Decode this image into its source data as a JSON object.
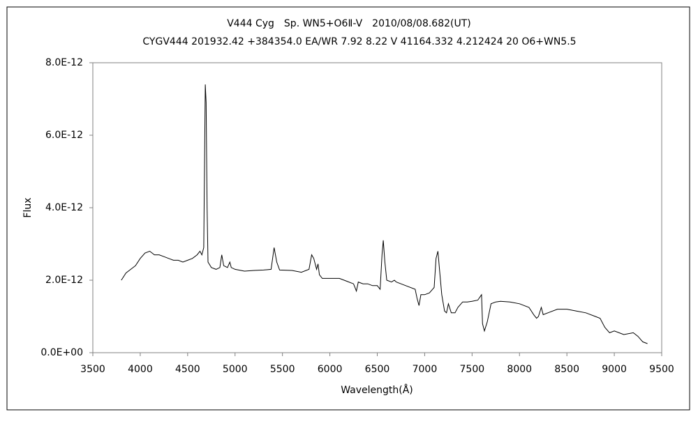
{
  "chart_data": {
    "type": "line",
    "title": "V444 Cyg　Sp. WN5+O6Ⅱ-V　2010/08/08.682(UT)",
    "subtitle": "CYGV444 201932.42 +384354.0 EA/WR 7.92 8.22  V 41164.332 4.212424 20 O6+WN5.5",
    "xlabel": "Wavelength(Å)",
    "ylabel": "Flux",
    "xlim": [
      3500,
      9500
    ],
    "xticks": [
      3500,
      4000,
      4500,
      5000,
      5500,
      6000,
      6500,
      7000,
      7500,
      8000,
      8500,
      9000,
      9500
    ],
    "ylim": [
      0,
      8e-12
    ],
    "yticks": [
      {
        "value": 0,
        "label": "0.0E+00"
      },
      {
        "value": 2e-12,
        "label": "2.0E-12"
      },
      {
        "value": 4e-12,
        "label": "4.0E-12"
      },
      {
        "value": 6e-12,
        "label": "6.0E-12"
      },
      {
        "value": 8e-12,
        "label": "8.0E-12"
      }
    ],
    "grid": false,
    "series": [
      {
        "color": "#000000",
        "x": [
          3800,
          3850,
          3900,
          3950,
          4000,
          4050,
          4100,
          4150,
          4200,
          4250,
          4300,
          4350,
          4400,
          4450,
          4500,
          4550,
          4600,
          4630,
          4650,
          4670,
          4686,
          4695,
          4705,
          4715,
          4750,
          4800,
          4840,
          4860,
          4880,
          4920,
          4945,
          4960,
          5000,
          5100,
          5200,
          5300,
          5380,
          5412,
          5440,
          5470,
          5600,
          5700,
          5780,
          5808,
          5830,
          5860,
          5875,
          5890,
          5920,
          6000,
          6100,
          6150,
          6200,
          6250,
          6280,
          6300,
          6350,
          6400,
          6450,
          6500,
          6530,
          6550,
          6563,
          6580,
          6600,
          6650,
          6680,
          6700,
          6800,
          6900,
          6920,
          6940,
          6960,
          7000,
          7050,
          7100,
          7120,
          7140,
          7160,
          7180,
          7210,
          7230,
          7250,
          7280,
          7320,
          7350,
          7400,
          7450,
          7500,
          7560,
          7600,
          7610,
          7630,
          7660,
          7700,
          7750,
          7800,
          7900,
          8000,
          8100,
          8150,
          8180,
          8200,
          8230,
          8250,
          8300,
          8400,
          8500,
          8600,
          8700,
          8800,
          8850,
          8900,
          8950,
          9000,
          9100,
          9200,
          9250,
          9300,
          9350
        ],
        "values": [
          2e-12,
          2.2e-12,
          2.3e-12,
          2.4e-12,
          2.6e-12,
          2.75e-12,
          2.8e-12,
          2.7e-12,
          2.7e-12,
          2.65e-12,
          2.6e-12,
          2.55e-12,
          2.55e-12,
          2.5e-12,
          2.55e-12,
          2.6e-12,
          2.7e-12,
          2.8e-12,
          2.7e-12,
          2.9e-12,
          7.4e-12,
          6.9e-12,
          4e-12,
          2.5e-12,
          2.35e-12,
          2.3e-12,
          2.35e-12,
          2.7e-12,
          2.4e-12,
          2.35e-12,
          2.5e-12,
          2.35e-12,
          2.3e-12,
          2.25e-12,
          2.27e-12,
          2.28e-12,
          2.3e-12,
          2.9e-12,
          2.5e-12,
          2.28e-12,
          2.27e-12,
          2.22e-12,
          2.3e-12,
          2.7e-12,
          2.6e-12,
          2.3e-12,
          2.45e-12,
          2.15e-12,
          2.05e-12,
          2.05e-12,
          2.05e-12,
          2e-12,
          1.95e-12,
          1.9e-12,
          1.7e-12,
          1.95e-12,
          1.9e-12,
          1.9e-12,
          1.85e-12,
          1.85e-12,
          1.75e-12,
          2.7e-12,
          3.1e-12,
          2.5e-12,
          2e-12,
          1.95e-12,
          2e-12,
          1.95e-12,
          1.85e-12,
          1.75e-12,
          1.5e-12,
          1.3e-12,
          1.6e-12,
          1.6e-12,
          1.65e-12,
          1.8e-12,
          2.6e-12,
          2.8e-12,
          2.2e-12,
          1.6e-12,
          1.15e-12,
          1.1e-12,
          1.35e-12,
          1.1e-12,
          1.1e-12,
          1.25e-12,
          1.4e-12,
          1.4e-12,
          1.42e-12,
          1.45e-12,
          1.6e-12,
          8e-13,
          6e-13,
          8.5e-13,
          1.35e-12,
          1.4e-12,
          1.42e-12,
          1.4e-12,
          1.35e-12,
          1.25e-12,
          1.05e-12,
          9.5e-13,
          1e-12,
          1.25e-12,
          1.05e-12,
          1.1e-12,
          1.2e-12,
          1.2e-12,
          1.15e-12,
          1.1e-12,
          1e-12,
          9.5e-13,
          7e-13,
          5.5e-13,
          6e-13,
          5e-13,
          5.5e-13,
          4.5e-13,
          3e-13,
          2.5e-13
        ]
      }
    ]
  }
}
